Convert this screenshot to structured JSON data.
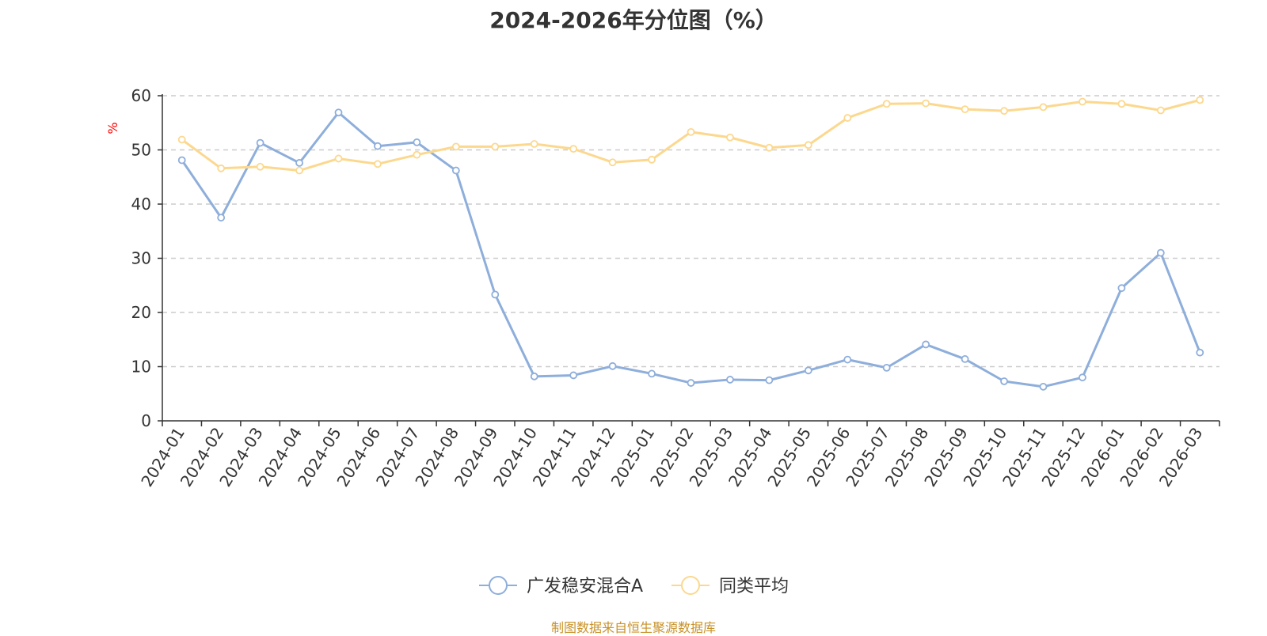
{
  "chart_data": {
    "type": "line",
    "title": "2024-2026年分位图（%）",
    "ylabel": "%",
    "xlabel": "",
    "ylim": [
      0,
      60
    ],
    "yticks": [
      0,
      10,
      20,
      30,
      40,
      50,
      60
    ],
    "grid": true,
    "legend_position": "bottom",
    "categories": [
      "2024-01",
      "2024-02",
      "2024-03",
      "2024-04",
      "2024-05",
      "2024-06",
      "2024-07",
      "2024-08",
      "2024-09",
      "2024-10",
      "2024-11",
      "2024-12",
      "2025-01",
      "2025-02",
      "2025-03",
      "2025-04",
      "2025-05",
      "2025-06",
      "2025-07",
      "2025-08",
      "2025-09",
      "2025-10",
      "2025-11",
      "2025-12",
      "2026-01",
      "2026-02",
      "2026-03"
    ],
    "series": [
      {
        "name": "广发稳安混合A",
        "color": "#8eaedb",
        "values": [
          48.1,
          37.5,
          51.3,
          47.6,
          56.9,
          50.7,
          51.4,
          46.2,
          23.3,
          8.2,
          8.4,
          10.1,
          8.7,
          7.0,
          7.6,
          7.5,
          9.3,
          11.3,
          9.8,
          14.1,
          11.4,
          7.3,
          6.3,
          8.0,
          24.5,
          31.0,
          12.6
        ]
      },
      {
        "name": "同类平均",
        "color": "#fcd88e",
        "values": [
          51.9,
          46.6,
          46.9,
          46.2,
          48.4,
          47.4,
          49.1,
          50.6,
          50.6,
          51.1,
          50.2,
          47.7,
          48.2,
          53.3,
          52.3,
          50.4,
          50.9,
          55.9,
          58.5,
          58.6,
          57.5,
          57.2,
          57.9,
          58.9,
          58.5,
          57.3,
          59.2
        ]
      }
    ]
  },
  "source_text": "制图数据来自恒生聚源数据库",
  "colors": {
    "axis": "#333333",
    "grid": "#cccccc",
    "ylabel": "#ff0000",
    "source": "#c8922a"
  }
}
